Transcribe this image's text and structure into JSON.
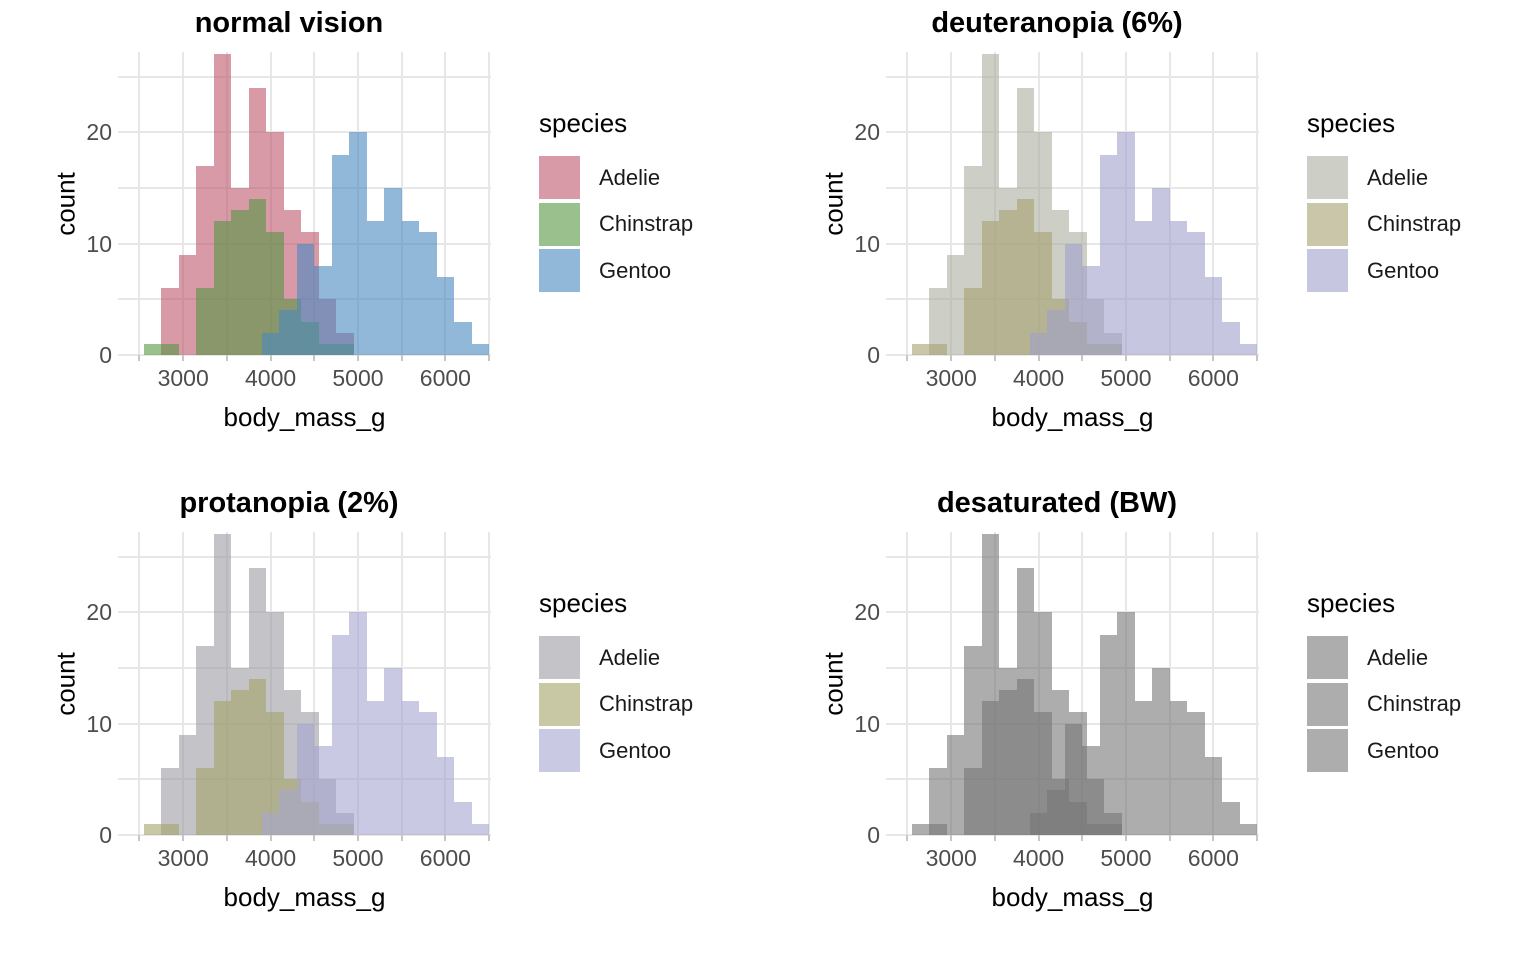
{
  "chart_data": {
    "type": "bar",
    "subtype": "overlaid_histograms_2x2_colorblind_simulation_grid",
    "legend_title": "species",
    "legend_position": "right",
    "xlabel": "body_mass_g",
    "ylabel": "count",
    "grid": true,
    "x_domain": [
      2254,
      6522
    ],
    "y_domain": [
      0,
      27.2
    ],
    "x_tick_labels": [
      3000,
      4000,
      5000,
      6000
    ],
    "x_tick_marks": [
      2500,
      3000,
      3500,
      4000,
      4500,
      5000,
      5500,
      6000,
      6500
    ],
    "y_tick_labels": [
      0,
      10,
      20
    ],
    "y_gridlines": [
      0,
      5,
      10,
      15,
      20,
      25
    ],
    "bin_width": 200,
    "series": [
      {
        "name": "Adelie",
        "bin_start": 2750,
        "counts": [
          6,
          9,
          17,
          27,
          15,
          24,
          20,
          13,
          11,
          5,
          2
        ]
      },
      {
        "name": "Chinstrap",
        "bin_start": 2550,
        "counts": [
          1,
          1,
          0,
          6,
          12,
          13,
          14,
          11,
          5,
          3,
          1,
          1
        ]
      },
      {
        "name": "Gentoo",
        "bin_start": 3900,
        "counts": [
          2,
          4,
          10,
          8,
          18,
          20,
          12,
          15,
          12,
          11,
          7,
          3,
          1
        ]
      }
    ],
    "panels": [
      {
        "title": "normal vision",
        "fills": {
          "Adelie": "rgba(190,87,108,0.6)",
          "Chinstrap": "rgba(85,150,65,0.6)",
          "Gentoo": "rgba(73,137,192,0.6)"
        },
        "swatches": {
          "Adelie": "#D89AA7",
          "Chinstrap": "#99C08D",
          "Gentoo": "#92B8D9"
        }
      },
      {
        "title": "deuteranopia (6%)",
        "fills": {
          "Adelie": "rgba(172,175,160,0.6)",
          "Chinstrap": "rgba(165,160,112,0.6)",
          "Gentoo": "rgba(160,160,205,0.6)"
        },
        "swatches": {
          "Adelie": "#CDCFC6",
          "Chinstrap": "#C9C6A9",
          "Gentoo": "#C6C6E1"
        }
      },
      {
        "title": "protanopia (2%)",
        "fills": {
          "Adelie": "rgba(155,155,163,0.6)",
          "Chinstrap": "rgba(165,163,103,0.6)",
          "Gentoo": "rgba(165,165,208,0.6)"
        },
        "swatches": {
          "Adelie": "#C3C3C8",
          "Chinstrap": "#C9C8A4",
          "Gentoo": "#C9C9E3"
        }
      },
      {
        "title": "desaturated (BW)",
        "fills": {
          "Adelie": "rgba(118,118,118,0.6)",
          "Chinstrap": "rgba(118,118,118,0.6)",
          "Gentoo": "rgba(118,118,118,0.6)"
        },
        "swatches": {
          "Adelie": "#ADADAD",
          "Chinstrap": "#ADADAD",
          "Gentoo": "#ADADAD"
        }
      }
    ],
    "colors_matter": {
      "gridline": "#e7e7e7",
      "tick_text": "#4d4d4d",
      "title_text": "#000000"
    }
  }
}
